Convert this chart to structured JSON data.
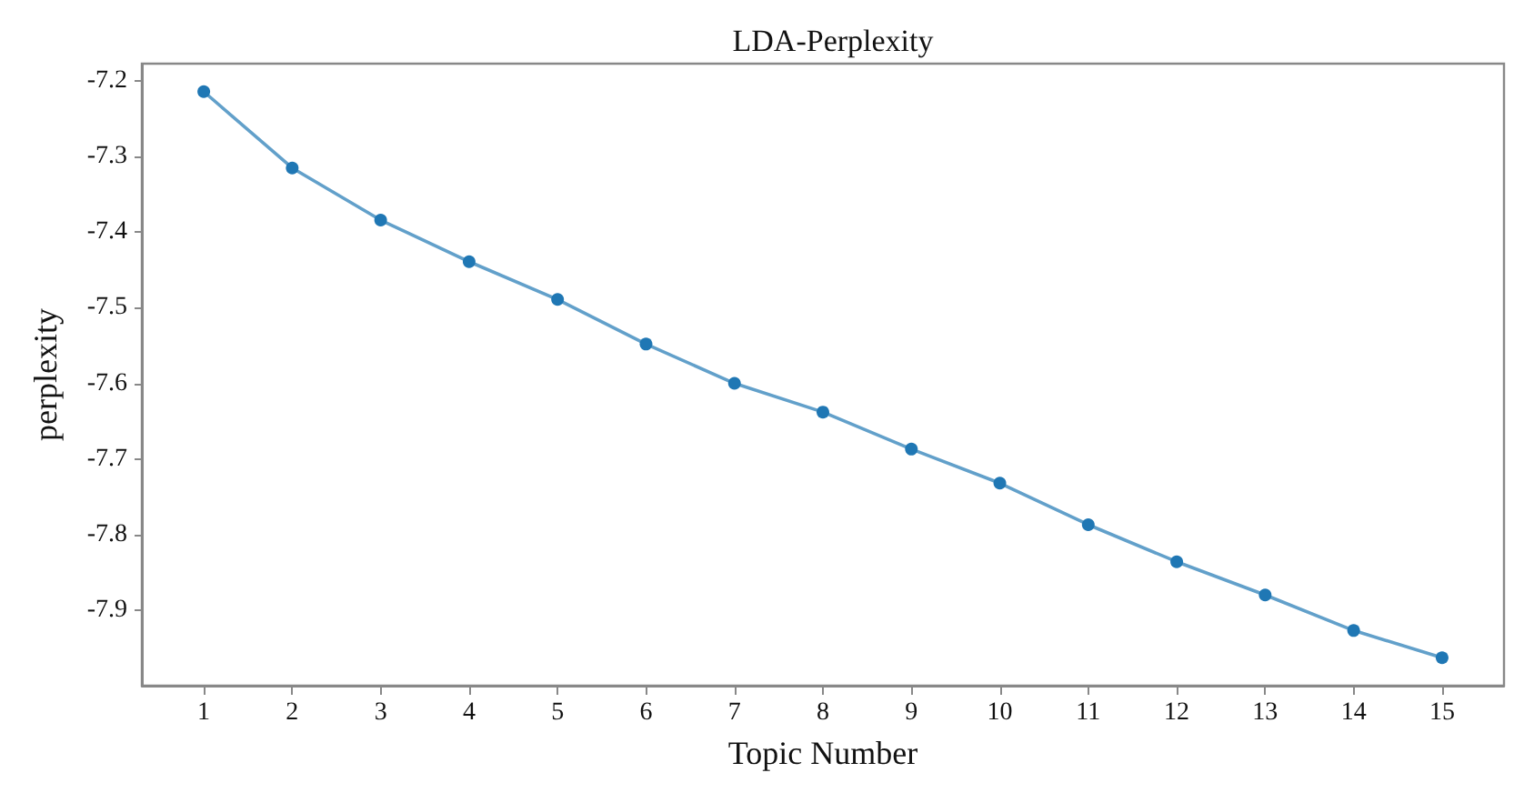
{
  "chart_data": {
    "type": "line",
    "title": "LDA-Perplexity",
    "xlabel": "Topic Number",
    "ylabel": "perplexity",
    "x": [
      1,
      2,
      3,
      4,
      5,
      6,
      7,
      8,
      9,
      10,
      11,
      12,
      13,
      14,
      15
    ],
    "series": [
      {
        "color": "#1f77b4",
        "values": [
          -7.214,
          -7.315,
          -7.384,
          -7.439,
          -7.489,
          -7.548,
          -7.6,
          -7.638,
          -7.687,
          -7.732,
          -7.787,
          -7.836,
          -7.88,
          -7.927,
          -7.963
        ]
      }
    ],
    "xlim": [
      0.3,
      15.7
    ],
    "xticks": [
      1,
      2,
      3,
      4,
      5,
      6,
      7,
      8,
      9,
      10,
      11,
      12,
      13,
      14,
      15
    ],
    "ylim": [
      -8.0,
      -7.177
    ],
    "yticks": [
      -7.9,
      -7.8,
      -7.7,
      -7.6,
      -7.5,
      -7.4,
      -7.3,
      -7.2
    ],
    "grid": false,
    "marker": "circle",
    "line_style": "solid"
  }
}
